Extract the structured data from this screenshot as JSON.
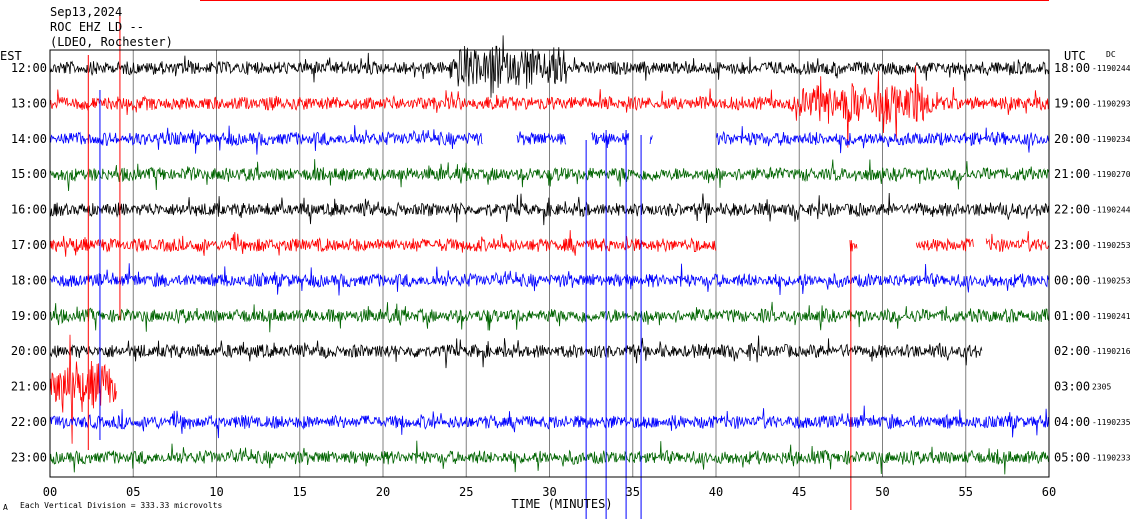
{
  "header": {
    "date": "Sep13,2024",
    "station": "ROC EHZ LD --",
    "network": "(LDEO, Rochester)"
  },
  "left_axis_label": "EST",
  "right_axis_label": "UTC",
  "dc_label": "DC",
  "footer_note": "Each Vertical Division = 333.33 microvolts",
  "colors": {
    "cycle": [
      "#000000",
      "#ff0000",
      "#0000ff",
      "#006400"
    ],
    "grid": "#808080",
    "frame": "#000000"
  },
  "chart_data": {
    "type": "line",
    "title": "",
    "xlabel": "TIME (MINUTES)",
    "ylabel": "",
    "xlim": [
      0,
      60
    ],
    "x_ticks": [
      "00",
      "05",
      "10",
      "15",
      "20",
      "25",
      "30",
      "35",
      "40",
      "45",
      "50",
      "55",
      "60"
    ],
    "grid": true,
    "rows": [
      {
        "est": "12:00",
        "utc": "18:00",
        "dc": "-1190244",
        "gaps": []
      },
      {
        "est": "13:00",
        "utc": "19:00",
        "dc": "-1190293",
        "gaps": []
      },
      {
        "est": "14:00",
        "utc": "20:00",
        "dc": "-1190234",
        "gaps": [
          [
            26,
            28
          ],
          [
            31,
            32.5
          ],
          [
            34.8,
            36
          ],
          [
            36.2,
            40
          ]
        ]
      },
      {
        "est": "15:00",
        "utc": "21:00",
        "dc": "-1190270",
        "gaps": []
      },
      {
        "est": "16:00",
        "utc": "22:00",
        "dc": "-1190244",
        "gaps": []
      },
      {
        "est": "17:00",
        "utc": "23:00",
        "dc": "-1190253",
        "gaps": [
          [
            40,
            48
          ],
          [
            48.5,
            52
          ],
          [
            55.5,
            56.2
          ]
        ]
      },
      {
        "est": "18:00",
        "utc": "00:00",
        "dc": "-1190253",
        "gaps": []
      },
      {
        "est": "19:00",
        "utc": "01:00",
        "dc": "-1190241",
        "gaps": []
      },
      {
        "est": "20:00",
        "utc": "02:00",
        "dc": "-1190216",
        "gaps": [
          [
            56,
            60
          ]
        ]
      },
      {
        "est": "21:00",
        "utc": "03:00",
        "dc": "2305",
        "gaps": [
          [
            4,
            60
          ]
        ]
      },
      {
        "est": "22:00",
        "utc": "04:00",
        "dc": "-1190235",
        "gaps": []
      },
      {
        "est": "23:00",
        "utc": "05:00",
        "dc": "-1190233",
        "gaps": []
      }
    ]
  }
}
